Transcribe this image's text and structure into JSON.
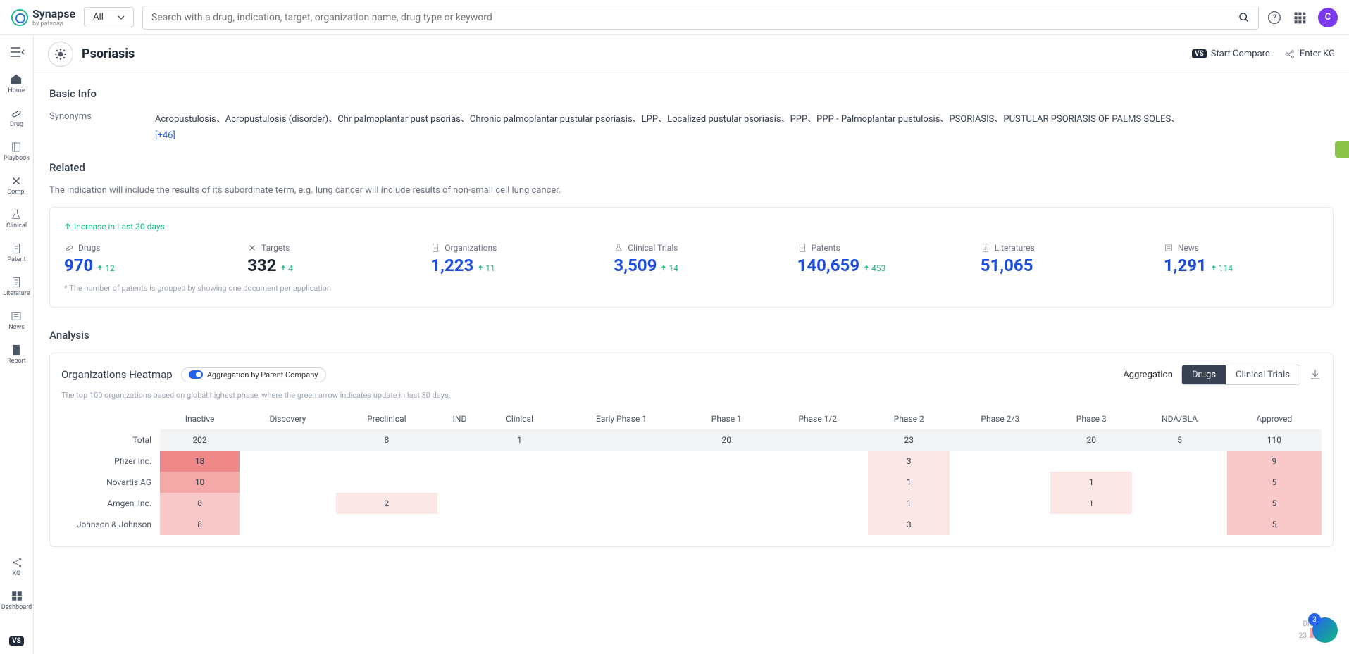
{
  "brand": {
    "name": "Synapse",
    "sub": "by patsnap"
  },
  "search": {
    "dropdown": "All",
    "placeholder": "Search with a drug, indication, target, organization name, drug type or keyword"
  },
  "avatar_letter": "C",
  "sidebar": [
    {
      "label": "Home",
      "icon": "home"
    },
    {
      "label": "Drug",
      "icon": "pill"
    },
    {
      "label": "Playbook",
      "icon": "book"
    },
    {
      "label": "Comp.",
      "icon": "cross"
    },
    {
      "label": "Clinical",
      "icon": "flask"
    },
    {
      "label": "Patent",
      "icon": "doc"
    },
    {
      "label": "Literature",
      "icon": "page"
    },
    {
      "label": "News",
      "icon": "news"
    },
    {
      "label": "Report",
      "icon": "report"
    }
  ],
  "sidebar_bottom": [
    {
      "label": "KG",
      "icon": "kg"
    },
    {
      "label": "Dashboard",
      "icon": "dash"
    }
  ],
  "page": {
    "title": "Psoriasis",
    "action_compare": "Start Compare",
    "action_kg": "Enter KG"
  },
  "basic_info": {
    "title": "Basic Info",
    "synonyms_label": "Synonyms",
    "synonyms": "Acropustulosis、Acropustulosis (disorder)、Chr palmoplantar pust psorias、Chronic palmoplantar pustular psoriasis、LPP、Localized pustular psoriasis、PPP、PPP - Palmoplantar pustulosis、PSORIASIS、PUSTULAR PSORIASIS OF PALMS SOLES、",
    "more": "[+46]"
  },
  "related": {
    "title": "Related",
    "desc": "The indication will include the results of its subordinate term, e.g. lung cancer will include results of non-small cell lung cancer.",
    "increase_label": "Increase in Last 30 days",
    "stats": [
      {
        "label": "Drugs",
        "value": "970",
        "delta": "12",
        "dark": false
      },
      {
        "label": "Targets",
        "value": "332",
        "delta": "4",
        "dark": true
      },
      {
        "label": "Organizations",
        "value": "1,223",
        "delta": "11",
        "dark": false
      },
      {
        "label": "Clinical Trials",
        "value": "3,509",
        "delta": "14",
        "dark": false
      },
      {
        "label": "Patents",
        "value": "140,659",
        "delta": "453",
        "dark": false
      },
      {
        "label": "Literatures",
        "value": "51,065",
        "delta": "",
        "dark": false
      },
      {
        "label": "News",
        "value": "1,291",
        "delta": "114",
        "dark": false
      }
    ],
    "footnote": "* The number of patents is grouped by showing one document per application"
  },
  "analysis": {
    "title": "Analysis",
    "heatmap_title": "Organizations Heatmap",
    "toggle_label": "Aggregation by Parent Company",
    "agg_label": "Aggregation",
    "tab_drugs": "Drugs",
    "tab_trials": "Clinical Trials",
    "desc": "The top 100 organizations based on global highest phase, where the green arrow indicates update in last 30 days.",
    "columns": [
      "Inactive",
      "Discovery",
      "Preclinical",
      "IND",
      "Clinical",
      "Early Phase 1",
      "Phase 1",
      "Phase 1/2",
      "Phase 2",
      "Phase 2/3",
      "Phase 3",
      "NDA/BLA",
      "Approved"
    ],
    "rows": [
      {
        "label": "Total",
        "cells": [
          {
            "v": "202",
            "c": "gray"
          },
          {
            "v": "",
            "c": "gray"
          },
          {
            "v": "8",
            "c": "gray"
          },
          {
            "v": "",
            "c": "gray"
          },
          {
            "v": "1",
            "c": "gray"
          },
          {
            "v": "",
            "c": "gray"
          },
          {
            "v": "20",
            "c": "gray"
          },
          {
            "v": "",
            "c": "gray"
          },
          {
            "v": "23",
            "c": "gray"
          },
          {
            "v": "",
            "c": "gray"
          },
          {
            "v": "20",
            "c": "gray"
          },
          {
            "v": "5",
            "c": "gray"
          },
          {
            "v": "110",
            "c": "gray"
          }
        ]
      },
      {
        "label": "Pfizer Inc.",
        "cells": [
          {
            "v": "18",
            "c": "red"
          },
          {
            "v": "",
            "c": ""
          },
          {
            "v": "",
            "c": ""
          },
          {
            "v": "",
            "c": ""
          },
          {
            "v": "",
            "c": ""
          },
          {
            "v": "",
            "c": ""
          },
          {
            "v": "",
            "c": ""
          },
          {
            "v": "",
            "c": ""
          },
          {
            "v": "3",
            "c": "pink1"
          },
          {
            "v": "",
            "c": ""
          },
          {
            "v": "",
            "c": ""
          },
          {
            "v": "",
            "c": ""
          },
          {
            "v": "9",
            "c": "pink2"
          }
        ]
      },
      {
        "label": "Novartis AG",
        "cells": [
          {
            "v": "10",
            "c": "pink3"
          },
          {
            "v": "",
            "c": ""
          },
          {
            "v": "",
            "c": ""
          },
          {
            "v": "",
            "c": ""
          },
          {
            "v": "",
            "c": ""
          },
          {
            "v": "",
            "c": ""
          },
          {
            "v": "",
            "c": ""
          },
          {
            "v": "",
            "c": ""
          },
          {
            "v": "1",
            "c": "pink1"
          },
          {
            "v": "",
            "c": ""
          },
          {
            "v": "1",
            "c": "pink1"
          },
          {
            "v": "",
            "c": ""
          },
          {
            "v": "5",
            "c": "pink2"
          }
        ]
      },
      {
        "label": "Amgen, Inc.",
        "cells": [
          {
            "v": "8",
            "c": "pink2"
          },
          {
            "v": "",
            "c": ""
          },
          {
            "v": "2",
            "c": "pink1"
          },
          {
            "v": "",
            "c": ""
          },
          {
            "v": "",
            "c": ""
          },
          {
            "v": "",
            "c": ""
          },
          {
            "v": "",
            "c": ""
          },
          {
            "v": "",
            "c": ""
          },
          {
            "v": "1",
            "c": "pink1"
          },
          {
            "v": "",
            "c": ""
          },
          {
            "v": "1",
            "c": "pink1"
          },
          {
            "v": "",
            "c": ""
          },
          {
            "v": "5",
            "c": "pink2"
          }
        ]
      },
      {
        "label": "Johnson & Johnson",
        "cells": [
          {
            "v": "8",
            "c": "pink2"
          },
          {
            "v": "",
            "c": ""
          },
          {
            "v": "",
            "c": ""
          },
          {
            "v": "",
            "c": ""
          },
          {
            "v": "",
            "c": ""
          },
          {
            "v": "",
            "c": ""
          },
          {
            "v": "",
            "c": ""
          },
          {
            "v": "",
            "c": ""
          },
          {
            "v": "3",
            "c": "pink1"
          },
          {
            "v": "",
            "c": ""
          },
          {
            "v": "",
            "c": ""
          },
          {
            "v": "",
            "c": ""
          },
          {
            "v": "5",
            "c": "pink2"
          }
        ]
      }
    ]
  },
  "floating": {
    "num": "3",
    "txt1": "Dru",
    "txt2": "23"
  }
}
